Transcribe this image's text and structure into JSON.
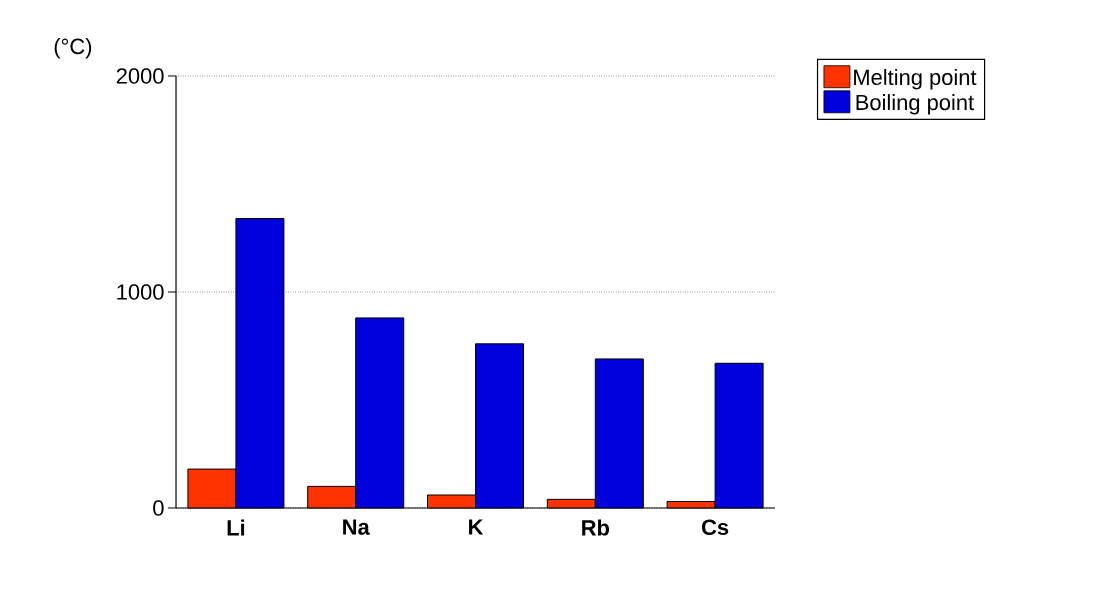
{
  "chart_data": {
    "type": "bar",
    "ylabel": "(°C)",
    "categories": [
      "Li",
      "Na",
      "K",
      "Rb",
      "Cs"
    ],
    "series": [
      {
        "name": "Melting point",
        "color": "#ff3300",
        "values": [
          180,
          100,
          60,
          40,
          30
        ]
      },
      {
        "name": "Boiling point",
        "color": "#0000dd",
        "values": [
          1340,
          880,
          760,
          690,
          670
        ]
      }
    ],
    "ylim": [
      0,
      2000
    ],
    "yticks": [
      0,
      1000,
      2000
    ],
    "grid": "y",
    "legend": "top right"
  }
}
